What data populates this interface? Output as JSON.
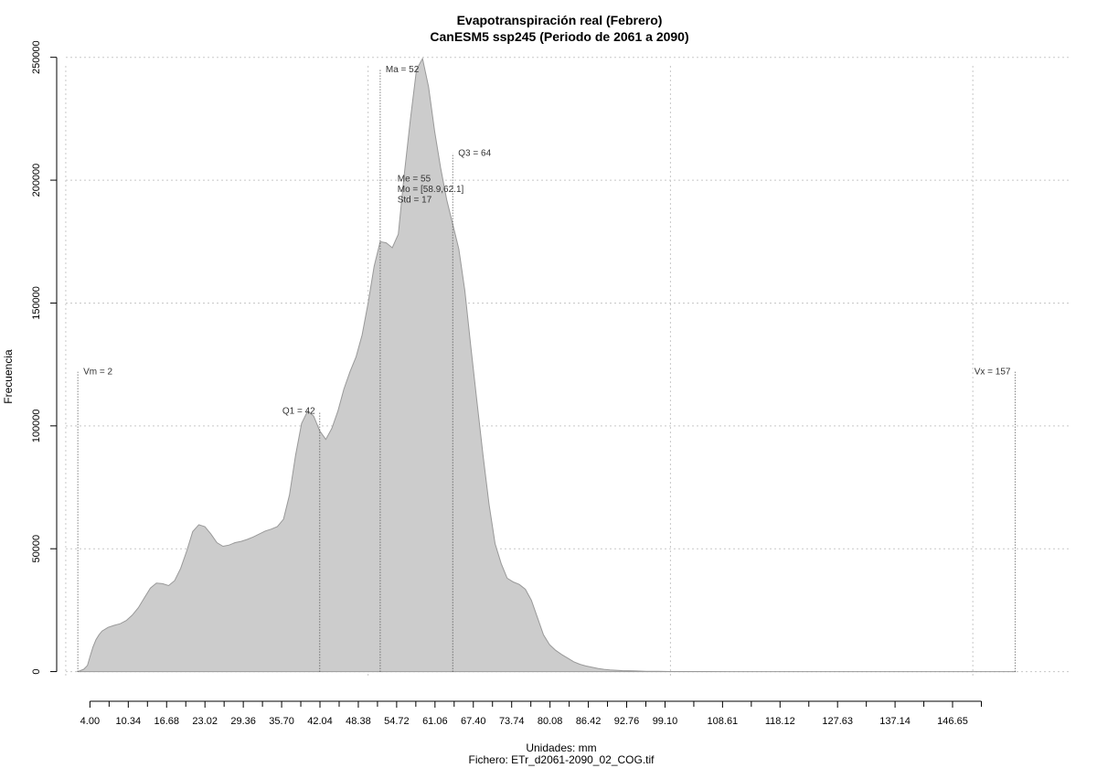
{
  "chart_data": {
    "type": "area",
    "title": "Evapotranspiración real (Febrero)",
    "subtitle": "CanESM5 ssp245 (Periodo de 2061 a 2090)",
    "xlabel": "Unidades: mm",
    "ylabel": "Frecuencia",
    "footer": "Fichero: ETr_d2061-2090_02_COG.tif",
    "xlim": [
      -1.5,
      166
    ],
    "ylim": [
      -5000,
      251000
    ],
    "grid": true,
    "fill_color": "#cccccc",
    "line_color": "#999999",
    "y_ticks": [
      0,
      50000,
      100000,
      150000,
      200000,
      250000
    ],
    "y_tick_labels": [
      "0",
      "50000",
      "100000",
      "150000",
      "200000",
      "250000"
    ],
    "x_major_ticks": [
      4.0,
      10.34,
      16.68,
      23.02,
      29.36,
      35.7,
      42.04,
      48.38,
      54.72,
      61.06,
      67.4,
      73.74,
      80.08,
      86.42,
      92.76,
      99.1,
      108.61,
      118.12,
      127.63,
      137.14,
      146.65
    ],
    "x_major_tick_labels": [
      "4.00",
      "10.34",
      "16.68",
      "23.02",
      "29.36",
      "35.70",
      "42.04",
      "48.38",
      "54.72",
      "61.06",
      "67.40",
      "73.74",
      "80.08",
      "86.42",
      "92.76",
      "99.10",
      "108.61",
      "118.12",
      "127.63",
      "137.14",
      "146.65"
    ],
    "x_minor_ticks": [
      7.17,
      13.51,
      19.85,
      26.19,
      32.53,
      38.87,
      45.21,
      51.55,
      57.89,
      64.23,
      70.57,
      76.91,
      83.25,
      89.59,
      95.93,
      103.86,
      113.37,
      122.88,
      132.39,
      141.9,
      151.41
    ],
    "x_grid": [
      0,
      50,
      100,
      150
    ],
    "y_grid": [
      0,
      50000,
      100000,
      150000,
      200000,
      250000
    ],
    "x": [
      2,
      3,
      3.6,
      4,
      4.5,
      5,
      5.5,
      6,
      7,
      8,
      9,
      10,
      11,
      12,
      13,
      14,
      15,
      16,
      17,
      18,
      19,
      20,
      21,
      22,
      23,
      24,
      25,
      26,
      27,
      28,
      29,
      30,
      31,
      32,
      33,
      34,
      35,
      36,
      37,
      38,
      39,
      40,
      41,
      42,
      43,
      44,
      45,
      46,
      47,
      48,
      49,
      50,
      51,
      52,
      53,
      54,
      55,
      56,
      57,
      58,
      59,
      60,
      61,
      62,
      63,
      64,
      65,
      66,
      67,
      68,
      69,
      70,
      71,
      72,
      73,
      74,
      75,
      76,
      77,
      78,
      79,
      80,
      81,
      82,
      83,
      84,
      85,
      86,
      87,
      88,
      89,
      90,
      92,
      94,
      96,
      98,
      100,
      102,
      104,
      106,
      110,
      120,
      130,
      140,
      150,
      157
    ],
    "values": [
      0,
      1000,
      2500,
      6000,
      10000,
      13000,
      15000,
      16500,
      18000,
      18800,
      19500,
      20800,
      23000,
      26000,
      30000,
      34000,
      36000,
      35800,
      35000,
      37000,
      42000,
      49000,
      57000,
      59800,
      59000,
      56000,
      52500,
      51000,
      51500,
      52500,
      53000,
      53800,
      54800,
      56000,
      57200,
      58000,
      59000,
      62000,
      72000,
      88000,
      101000,
      106000,
      104000,
      98000,
      94500,
      99000,
      106000,
      115000,
      122000,
      128000,
      137000,
      150000,
      165000,
      175000,
      174500,
      172500,
      178000,
      203000,
      225000,
      245000,
      249500,
      238000,
      220000,
      205000,
      192000,
      182000,
      172000,
      155000,
      132000,
      110000,
      88000,
      68000,
      52000,
      44000,
      38000,
      36500,
      35500,
      33500,
      29000,
      22000,
      15000,
      11000,
      8700,
      7000,
      5500,
      4000,
      3000,
      2300,
      1800,
      1300,
      900,
      650,
      400,
      300,
      150,
      80,
      40,
      20,
      10,
      5,
      2,
      1,
      0,
      0,
      0,
      0
    ],
    "annotations": [
      {
        "label": "Vm = 2",
        "x": 2,
        "height": 122000,
        "text_side": "right"
      },
      {
        "label": "Q1 = 42",
        "x": 42,
        "height": 106000,
        "text_side": "left"
      },
      {
        "label": "Ma = 52",
        "x": 52,
        "height": 245000,
        "text_side": "right"
      },
      {
        "label": "Q3 = 64",
        "x": 64,
        "height": 211000,
        "text_side": "right"
      },
      {
        "label": "Vx = 157",
        "x": 157,
        "height": 122000,
        "text_side": "left"
      }
    ],
    "stats_block": [
      "Me = 55",
      "Mo = [58.9,62.1]",
      "Std = 17"
    ],
    "stats_anchor": {
      "x": 55,
      "y": 201000
    }
  }
}
